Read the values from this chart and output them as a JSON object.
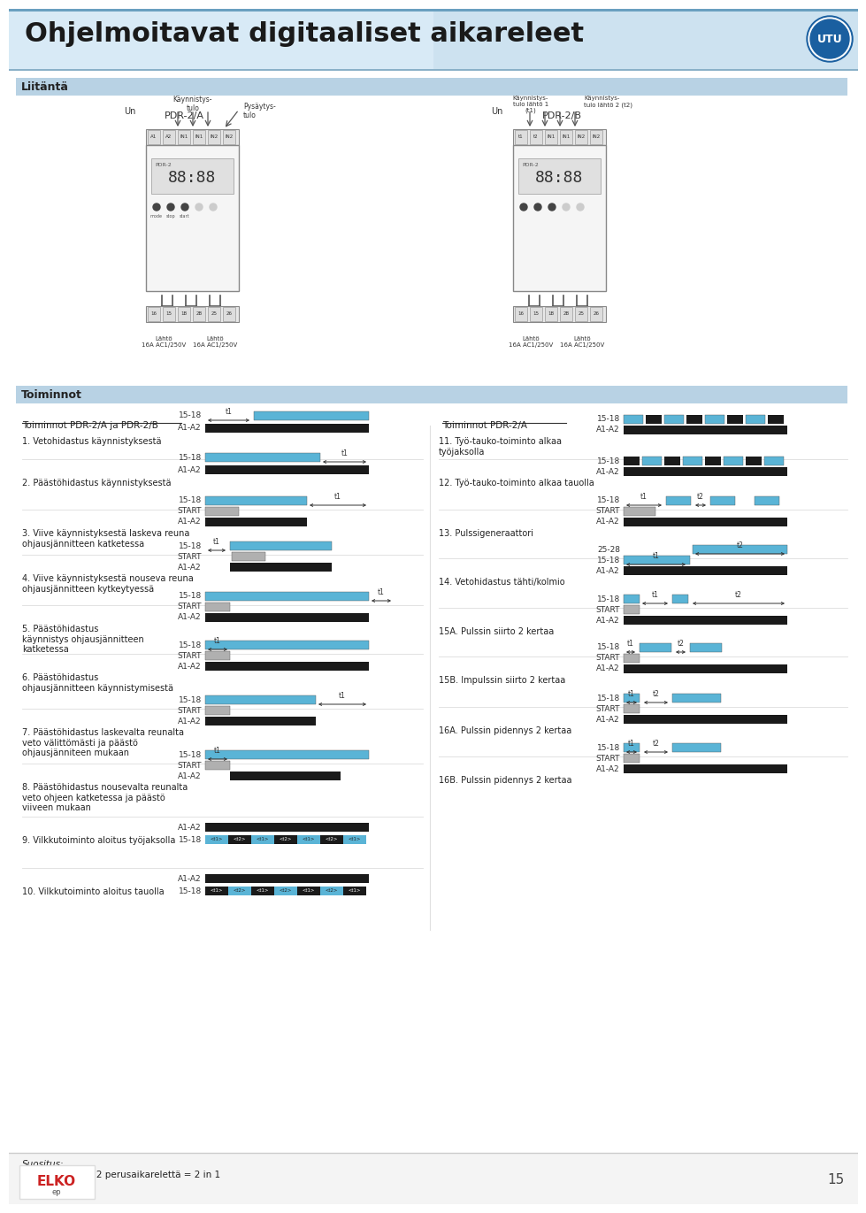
{
  "title": "Ohjelmoitavat digitaaliset aikareleet",
  "header_bg": "#d0e4f4",
  "body_bg": "#ffffff",
  "dark_bar": "#1a1a1a",
  "blue_bar": "#5ab4d6",
  "gray_bar": "#b0b0b0",
  "footer_text_1": "Suositus:",
  "footer_text_2": "PDR-2/B korvaa 2 perusaikarelettä = 2 in 1",
  "liitanta_label": "Liitäntä",
  "toiminnot_label": "Toiminnot",
  "left_section_label": "Toiminnot PDR-2/A ja PDR-2/B",
  "right_section_label": "Toiminnot PDR-2/A",
  "pdr2a_label": "PDR-2/A",
  "pdr2b_label": "PDR-2/B"
}
